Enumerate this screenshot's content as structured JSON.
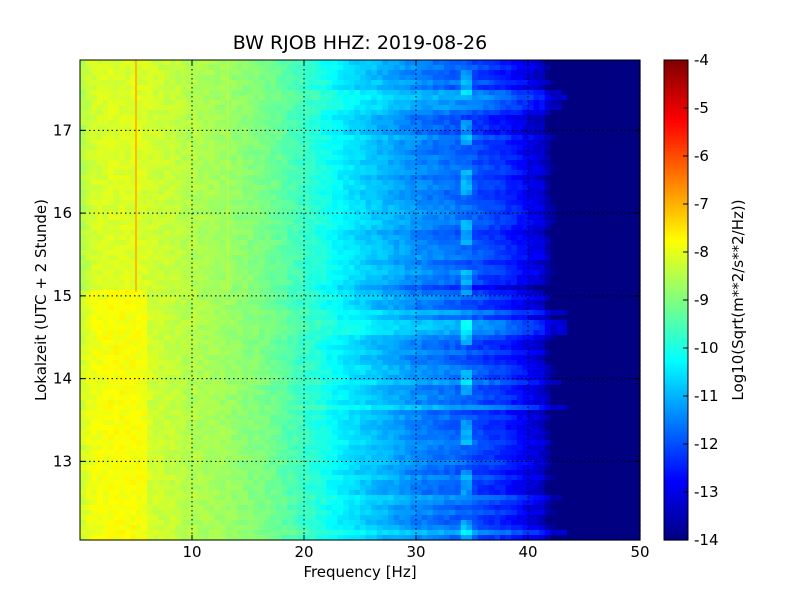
{
  "chart_data": {
    "type": "heatmap",
    "title": "BW RJOB HHZ: 2019-08-26",
    "xlabel": "Frequency [Hz]",
    "ylabel": "Lokalzeit (UTC + 2 Stunde)",
    "xlim": [
      0,
      50
    ],
    "ylim": [
      17.85,
      12.05
    ],
    "x_ticks": [
      "10",
      "20",
      "30",
      "40",
      "50"
    ],
    "x_tick_values": [
      10,
      20,
      30,
      40,
      50
    ],
    "y_ticks": [
      "13",
      "14",
      "15",
      "16",
      "17"
    ],
    "y_tick_values": [
      13,
      14,
      15,
      16,
      17
    ],
    "grid": true,
    "colorbar": {
      "label": "Log10(Sqrt(m**2/s**2/Hz))",
      "range": [
        -14,
        -4
      ],
      "ticks": [
        "-4",
        "-5",
        "-6",
        "-7",
        "-8",
        "-9",
        "-10",
        "-11",
        "-12",
        "-13",
        "-14"
      ],
      "tick_values": [
        -4,
        -5,
        -6,
        -7,
        -8,
        -9,
        -10,
        -11,
        -12,
        -13,
        -14
      ],
      "colormap": "jet"
    },
    "spectral_profile": {
      "frequency_hz": [
        0,
        1,
        3,
        5,
        8,
        10,
        13,
        16,
        18,
        20,
        22,
        24,
        26,
        28,
        30,
        32,
        34,
        36,
        38,
        40,
        41.5,
        42,
        50
      ],
      "log10_amplitude": [
        -8.6,
        -8.2,
        -8.1,
        -8.1,
        -8.3,
        -8.5,
        -8.7,
        -9.0,
        -9.3,
        -9.7,
        -10.1,
        -10.5,
        -10.8,
        -11.1,
        -11.4,
        -11.6,
        -11.8,
        -12.1,
        -12.4,
        -12.9,
        -13.3,
        -14.0,
        -14.0
      ]
    },
    "features": {
      "persistent_line_hz": 5.0,
      "weak_line_hz": 13.2,
      "tremor_track_hz": 34.5,
      "low_frequency_energy_until_hour": 15.05
    }
  }
}
